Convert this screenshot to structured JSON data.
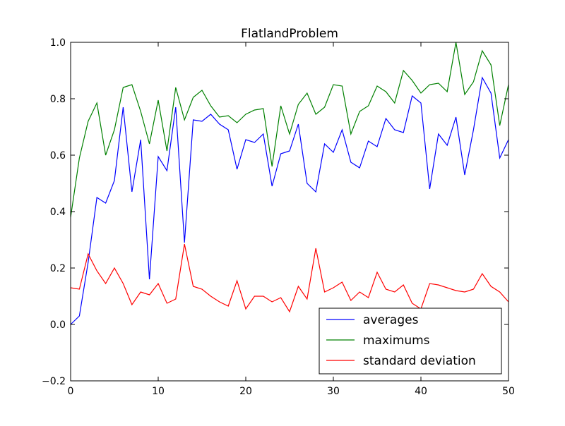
{
  "chart_data": {
    "type": "line",
    "title": "FlatlandProblem",
    "xlabel": "",
    "ylabel": "",
    "xlim": [
      0,
      50
    ],
    "ylim": [
      -0.2,
      1.0
    ],
    "xticks": [
      "0",
      "10",
      "20",
      "30",
      "40",
      "50"
    ],
    "yticks": [
      "−0.2",
      "0.0",
      "0.2",
      "0.4",
      "0.6",
      "0.8",
      "1.0"
    ],
    "grid": false,
    "legend_position": "lower-right",
    "x": [
      0,
      1,
      2,
      3,
      4,
      5,
      6,
      7,
      8,
      9,
      10,
      11,
      12,
      13,
      14,
      15,
      16,
      17,
      18,
      19,
      20,
      21,
      22,
      23,
      24,
      25,
      26,
      27,
      28,
      29,
      30,
      31,
      32,
      33,
      34,
      35,
      36,
      37,
      38,
      39,
      40,
      41,
      42,
      43,
      44,
      45,
      46,
      47,
      48,
      49,
      50
    ],
    "series": [
      {
        "name": "averages",
        "color": "#0000ff",
        "values": [
          0.0,
          0.03,
          0.22,
          0.45,
          0.43,
          0.51,
          0.77,
          0.47,
          0.655,
          0.16,
          0.595,
          0.545,
          0.77,
          0.29,
          0.725,
          0.72,
          0.745,
          0.71,
          0.69,
          0.55,
          0.655,
          0.645,
          0.675,
          0.49,
          0.605,
          0.615,
          0.71,
          0.5,
          0.47,
          0.64,
          0.61,
          0.69,
          0.575,
          0.555,
          0.65,
          0.63,
          0.73,
          0.69,
          0.68,
          0.81,
          0.785,
          0.48,
          0.675,
          0.635,
          0.735,
          0.53,
          0.69,
          0.875,
          0.82,
          0.59,
          0.655
        ]
      },
      {
        "name": "maximums",
        "color": "#008000",
        "values": [
          0.38,
          0.59,
          0.72,
          0.785,
          0.6,
          0.69,
          0.84,
          0.85,
          0.755,
          0.64,
          0.795,
          0.615,
          0.84,
          0.725,
          0.805,
          0.83,
          0.775,
          0.735,
          0.74,
          0.715,
          0.745,
          0.76,
          0.765,
          0.56,
          0.775,
          0.675,
          0.78,
          0.82,
          0.745,
          0.77,
          0.85,
          0.845,
          0.675,
          0.755,
          0.775,
          0.845,
          0.825,
          0.785,
          0.9,
          0.865,
          0.82,
          0.85,
          0.855,
          0.825,
          1.0,
          0.815,
          0.86,
          0.97,
          0.92,
          0.705,
          0.85
        ]
      },
      {
        "name": "standard deviation",
        "color": "#ff0000",
        "values": [
          0.13,
          0.125,
          0.25,
          0.19,
          0.145,
          0.2,
          0.145,
          0.07,
          0.115,
          0.105,
          0.145,
          0.075,
          0.09,
          0.285,
          0.135,
          0.125,
          0.1,
          0.08,
          0.065,
          0.155,
          0.055,
          0.1,
          0.1,
          0.08,
          0.095,
          0.045,
          0.135,
          0.09,
          0.27,
          0.115,
          0.13,
          0.15,
          0.085,
          0.115,
          0.095,
          0.185,
          0.125,
          0.115,
          0.14,
          0.075,
          0.055,
          0.145,
          0.14,
          0.13,
          0.12,
          0.115,
          0.125,
          0.18,
          0.135,
          0.115,
          0.08
        ]
      }
    ]
  }
}
